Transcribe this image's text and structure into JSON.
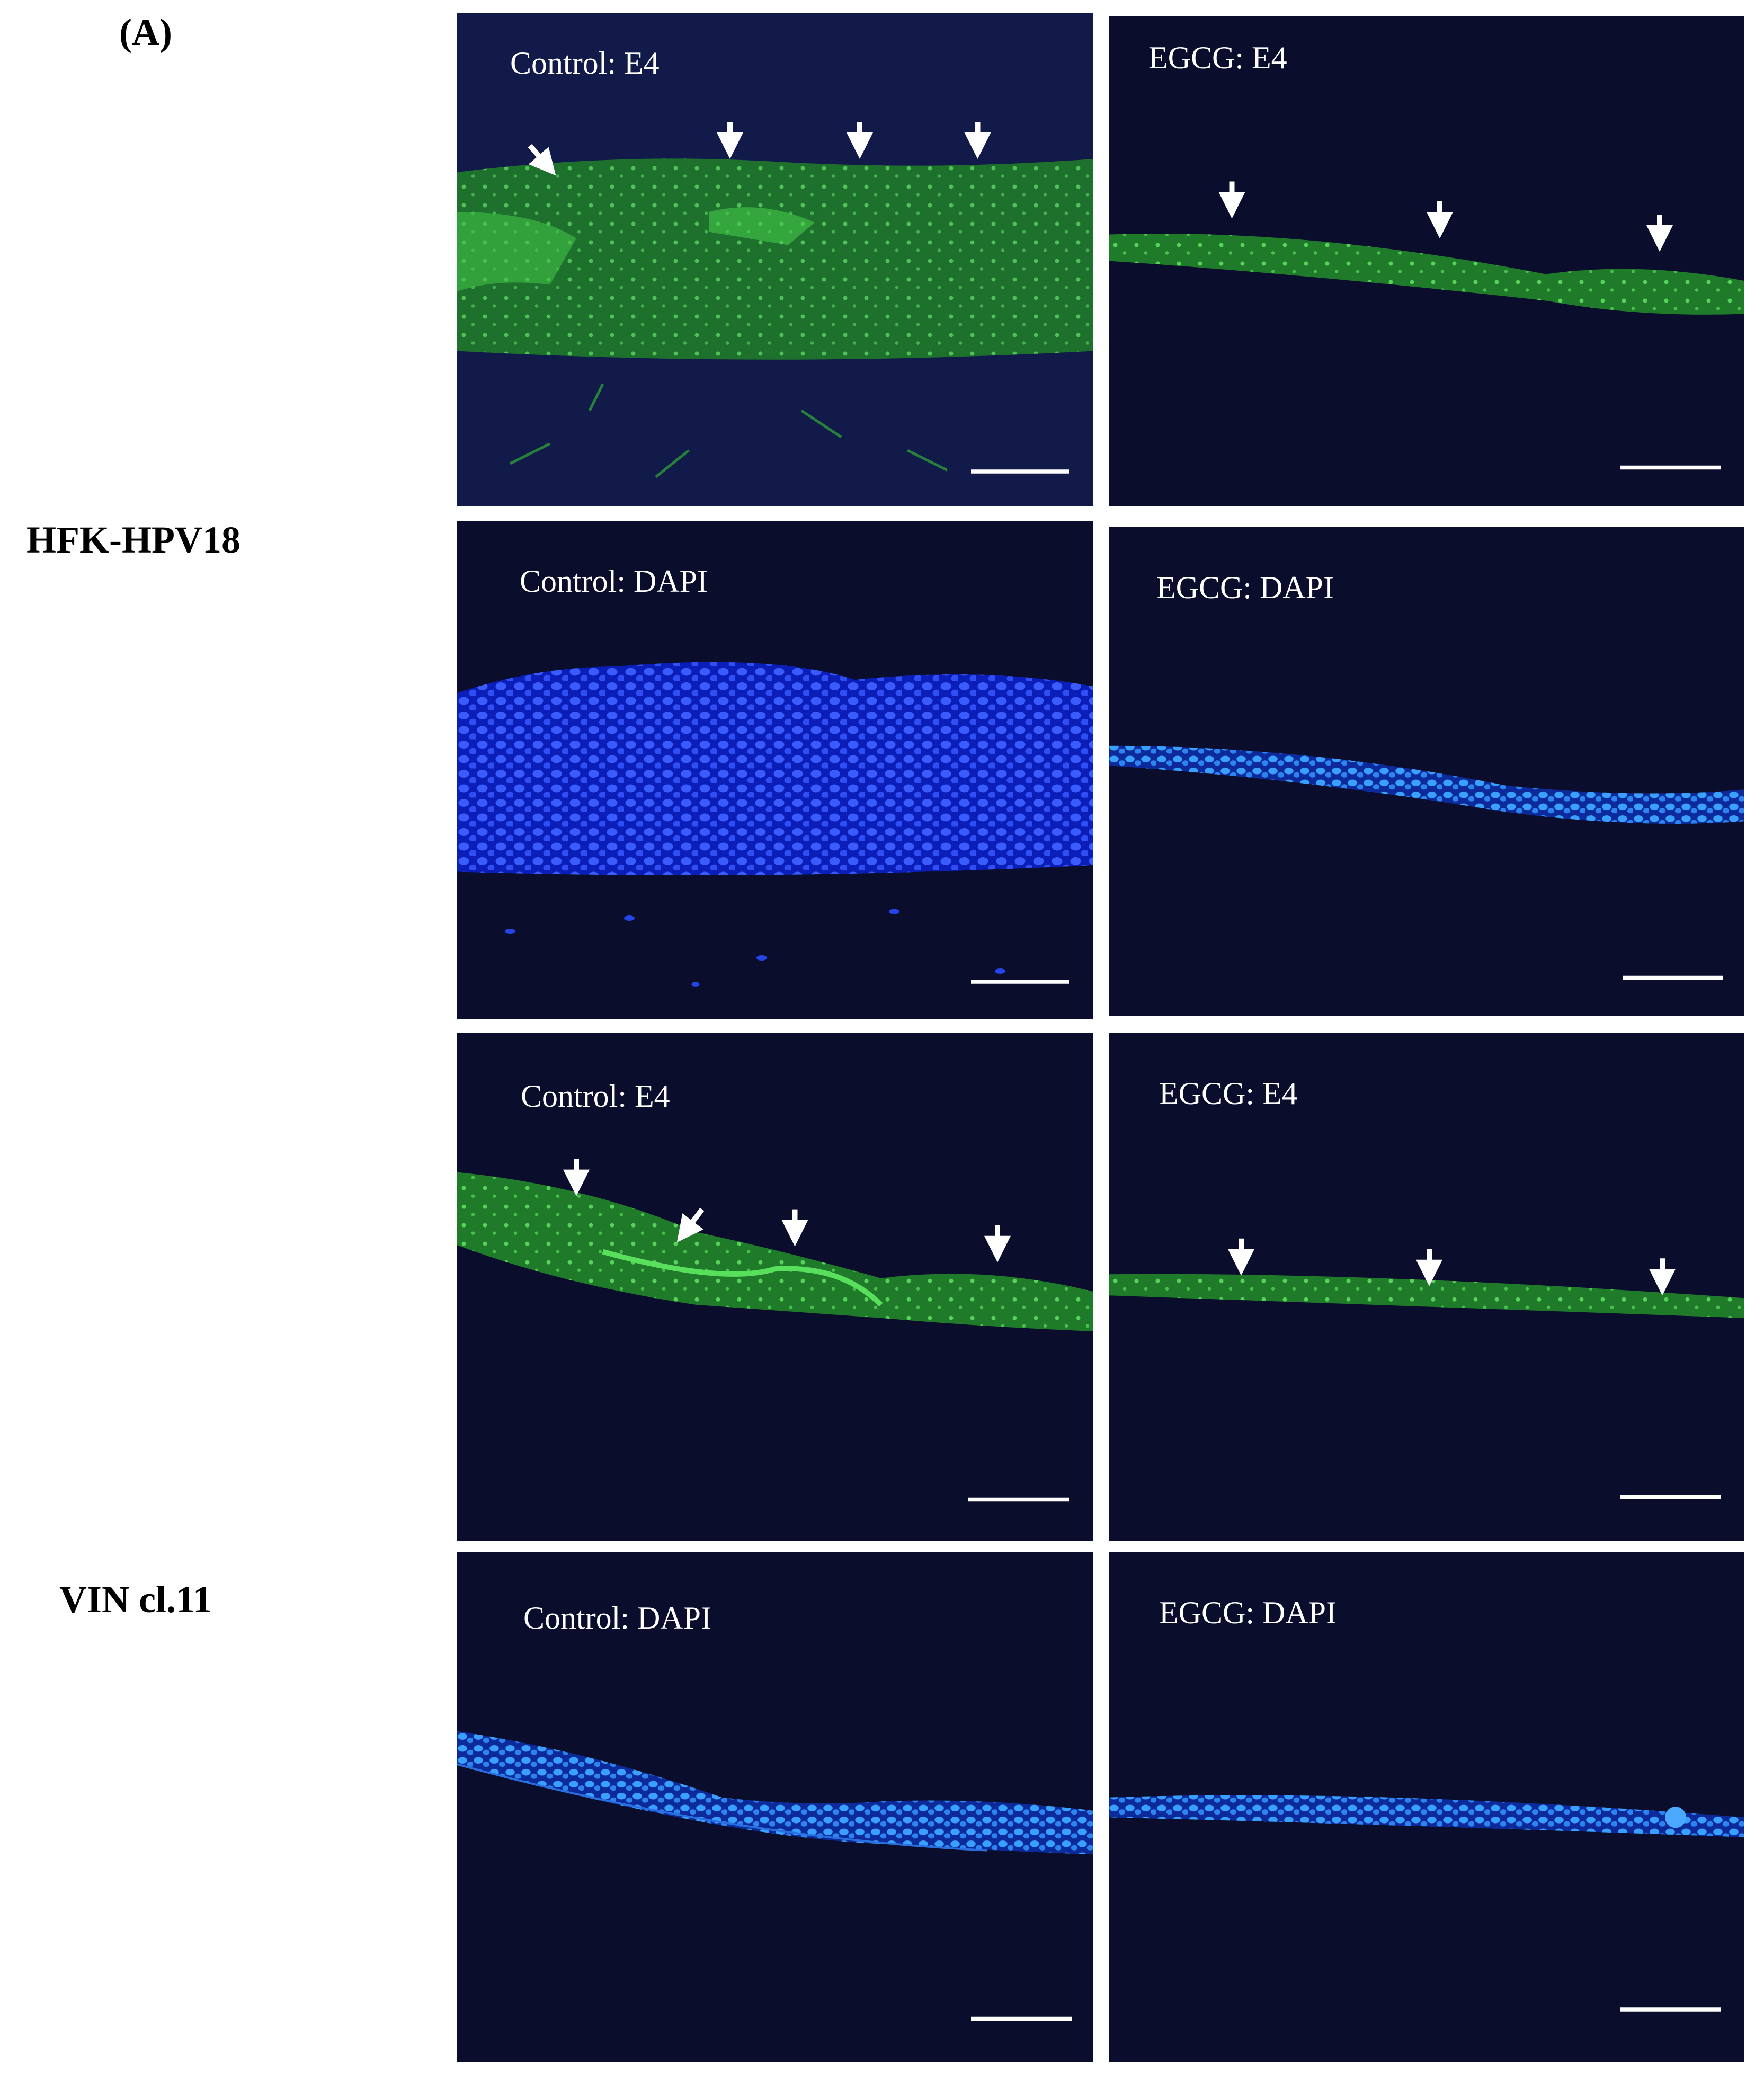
{
  "panel_label": "(A)",
  "row_groups": [
    {
      "label": "HFK-HPV18"
    },
    {
      "label": "VIN cl.11"
    }
  ],
  "panels": [
    {
      "label": "Control: E4"
    },
    {
      "label": "EGCG: E4"
    },
    {
      "label": "Control: DAPI"
    },
    {
      "label": "EGCG: DAPI"
    },
    {
      "label": "Control: E4"
    },
    {
      "label": "EGCG: E4"
    },
    {
      "label": "Control: DAPI"
    },
    {
      "label": "EGCG: DAPI"
    }
  ]
}
